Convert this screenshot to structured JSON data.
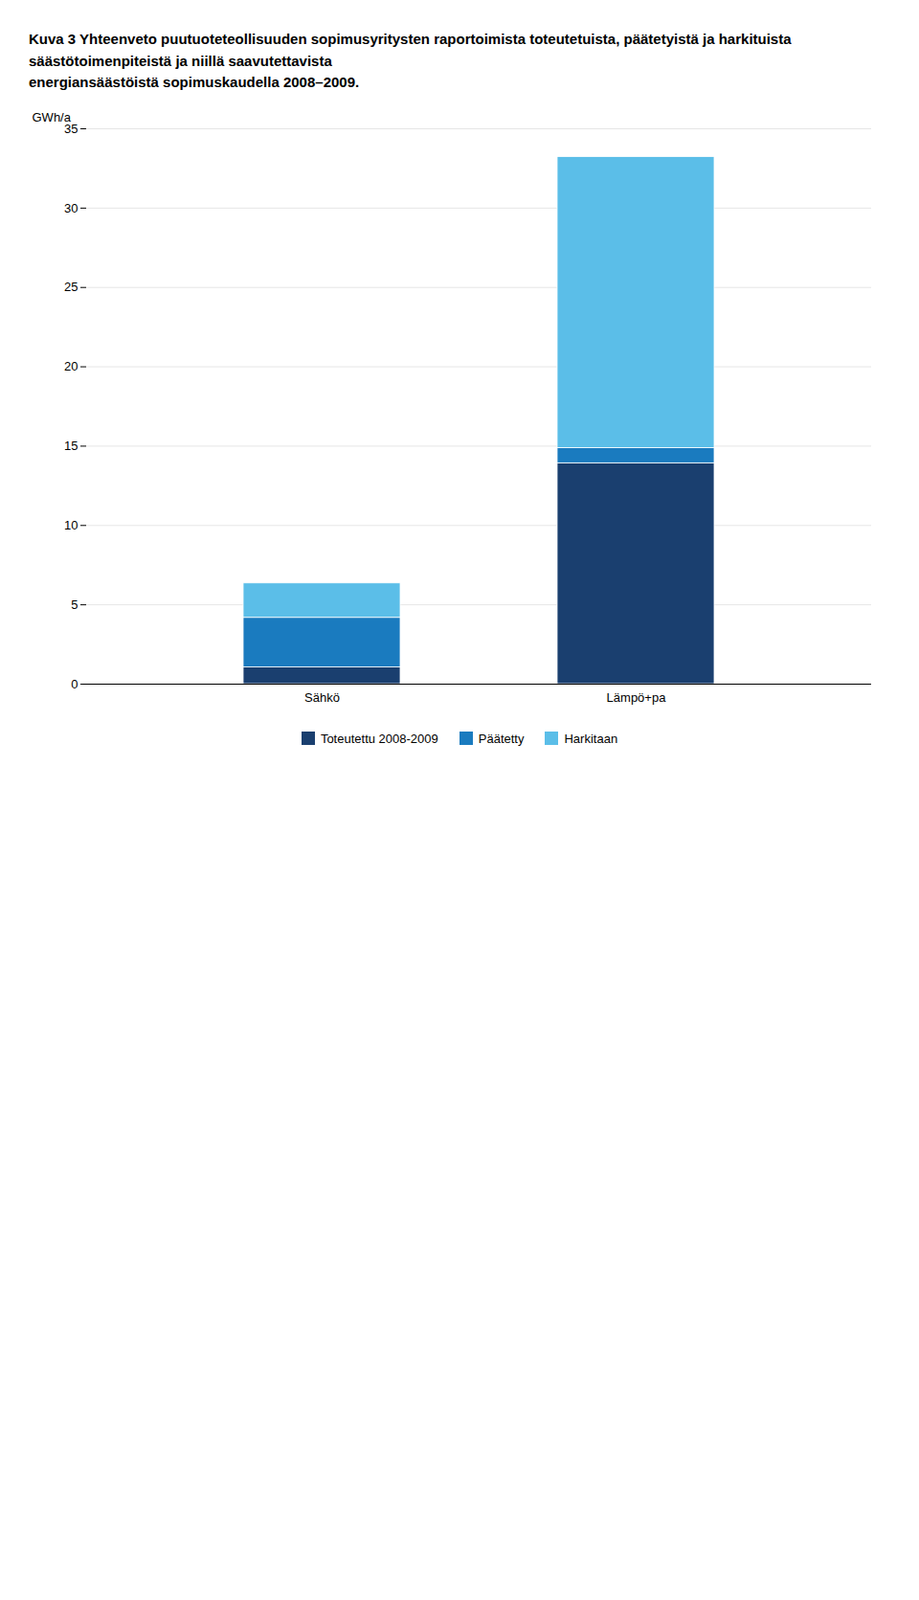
{
  "chart_data": {
    "type": "bar",
    "title": "Kuva 3 Yhteenveto puutuoteteollisuuden sopimusyritysten raportoimista toteutetuista, päätetyistä ja harkituista säästötoimenpiteistä ja niillä saavutettavista\nenergiansäästöistä sopimuskaudella 2008–2009.",
    "categories": [
      "Sähkö",
      "Lämpö+pa"
    ],
    "series": [
      {
        "name": "Toteutettu 2008-2009",
        "color": "#1a3f6f",
        "values": [
          1.05,
          13.92
        ]
      },
      {
        "name": "Päätetty",
        "color": "#1a7bbf",
        "values": [
          3.13,
          0.95
        ]
      },
      {
        "name": "Harkitaan",
        "color": "#5bbee8",
        "values": [
          2.17,
          18.35
        ]
      }
    ],
    "ylabel": "GWh/a",
    "ylim": [
      0,
      35
    ],
    "yticks": [
      0,
      5,
      10,
      15,
      20,
      25,
      30,
      35
    ],
    "stacked": true,
    "grid": true,
    "legend": "bottom"
  }
}
